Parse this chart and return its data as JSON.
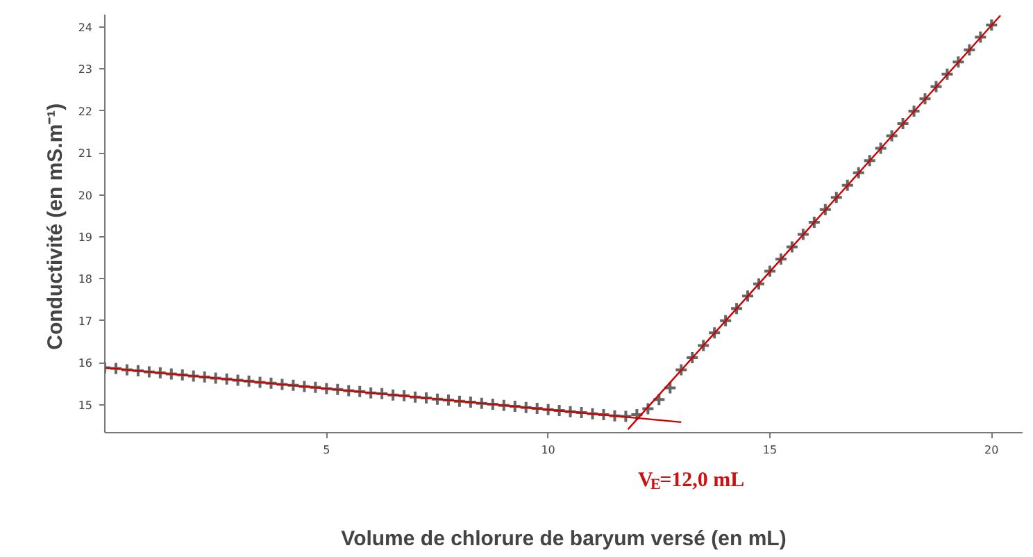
{
  "chart_data": {
    "type": "scatter",
    "xlabel": "Volume de chlorure de baryum versé (en mL)",
    "ylabel": "Conductivité  (en mS.m⁻¹)",
    "xlim": [
      0,
      20.7
    ],
    "ylim": [
      14.33,
      24.3
    ],
    "xticks": [
      5,
      10,
      15,
      20
    ],
    "yticks": [
      15,
      16,
      17,
      18,
      19,
      20,
      21,
      22,
      23,
      24
    ],
    "grid": false,
    "series": [
      {
        "marker": "cross",
        "color": "#666666",
        "x": [
          0,
          0.25,
          0.5,
          0.75,
          1,
          1.25,
          1.5,
          1.75,
          2,
          2.25,
          2.5,
          2.75,
          3,
          3.25,
          3.5,
          3.75,
          4,
          4.25,
          4.5,
          4.75,
          5,
          5.25,
          5.5,
          5.75,
          6,
          6.25,
          6.5,
          6.75,
          7,
          7.25,
          7.5,
          7.75,
          8,
          8.25,
          8.5,
          8.75,
          9,
          9.25,
          9.5,
          9.75,
          10,
          10.25,
          10.5,
          10.75,
          11,
          11.25,
          11.5,
          11.75,
          12,
          12.25,
          12.5,
          12.75,
          13,
          13.25,
          13.5,
          13.75,
          14,
          14.25,
          14.5,
          14.75,
          15,
          15.25,
          15.5,
          15.75,
          16,
          16.25,
          16.5,
          16.75,
          17,
          17.25,
          17.5,
          17.75,
          18,
          18.25,
          18.5,
          18.75,
          19,
          19.25,
          19.5,
          19.75,
          20
        ],
        "values": [
          15.88,
          15.86,
          15.83,
          15.81,
          15.78,
          15.76,
          15.73,
          15.71,
          15.68,
          15.66,
          15.63,
          15.61,
          15.58,
          15.56,
          15.53,
          15.51,
          15.48,
          15.46,
          15.43,
          15.41,
          15.38,
          15.36,
          15.33,
          15.31,
          15.28,
          15.26,
          15.23,
          15.21,
          15.18,
          15.16,
          15.13,
          15.11,
          15.08,
          15.06,
          15.03,
          15.01,
          14.98,
          14.96,
          14.93,
          14.91,
          14.88,
          14.86,
          14.83,
          14.81,
          14.78,
          14.76,
          14.73,
          14.72,
          14.76,
          14.9,
          15.12,
          15.4,
          15.83,
          16.12,
          16.41,
          16.71,
          17.0,
          17.29,
          17.59,
          17.88,
          18.18,
          18.47,
          18.76,
          19.06,
          19.35,
          19.65,
          19.94,
          20.23,
          20.53,
          20.82,
          21.11,
          21.41,
          21.7,
          22.0,
          22.29,
          22.58,
          22.88,
          23.17,
          23.46,
          23.76,
          24.05
        ]
      },
      {
        "type": "line",
        "color": "#cc0000",
        "x": [
          0,
          13
        ],
        "values": [
          15.88,
          14.58
        ]
      },
      {
        "type": "line",
        "color": "#cc0000",
        "x": [
          11.8,
          20.2
        ],
        "values": [
          14.41,
          24.28
        ]
      }
    ],
    "annotations": [
      "V$_{E}$=12,0 mL"
    ]
  }
}
